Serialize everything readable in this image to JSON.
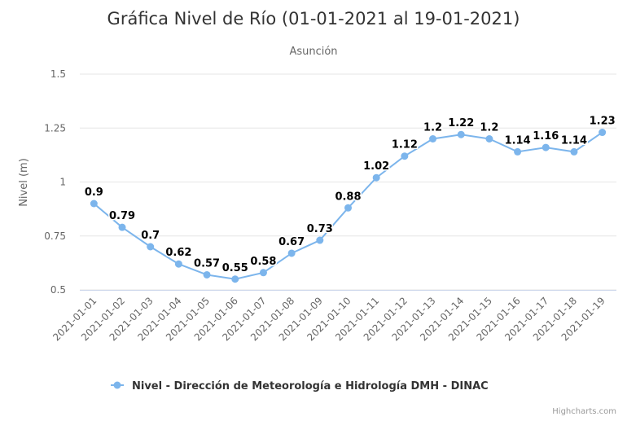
{
  "chart_data": {
    "type": "line",
    "title": "Gráfica Nivel de Río (01-01-2021 al 19-01-2021)",
    "subtitle": "Asunción",
    "ylabel": "Nivel (m)",
    "xlabel": "",
    "ylim": [
      0.5,
      1.5
    ],
    "yticks": [
      0.5,
      0.75,
      1,
      1.25,
      1.5
    ],
    "ytick_labels": [
      "0.5",
      "0.75",
      "1",
      "1.25",
      "1.5"
    ],
    "grid": true,
    "legend_position": "bottom",
    "categories": [
      "2021-01-01",
      "2021-01-02",
      "2021-01-03",
      "2021-01-04",
      "2021-01-05",
      "2021-01-06",
      "2021-01-07",
      "2021-01-08",
      "2021-01-09",
      "2021-01-10",
      "2021-01-11",
      "2021-01-12",
      "2021-01-13",
      "2021-01-14",
      "2021-01-15",
      "2021-01-16",
      "2021-01-17",
      "2021-01-18",
      "2021-01-19"
    ],
    "series": [
      {
        "name": "Nivel - Dirección de Meteorología e Hidrología DMH - DINAC",
        "color": "#7cb5ec",
        "values": [
          0.9,
          0.79,
          0.7,
          0.62,
          0.57,
          0.55,
          0.58,
          0.67,
          0.73,
          0.88,
          1.02,
          1.12,
          1.2,
          1.22,
          1.2,
          1.14,
          1.16,
          1.14,
          1.23
        ],
        "labels": [
          "0.9",
          "0.79",
          "0.7",
          "0.62",
          "0.57",
          "0.55",
          "0.58",
          "0.67",
          "0.73",
          "0.88",
          "1.02",
          "1.12",
          "1.2",
          "1.22",
          "1.2",
          "1.14",
          "1.16",
          "1.14",
          "1.23"
        ]
      }
    ],
    "credits": "Highcharts.com"
  }
}
